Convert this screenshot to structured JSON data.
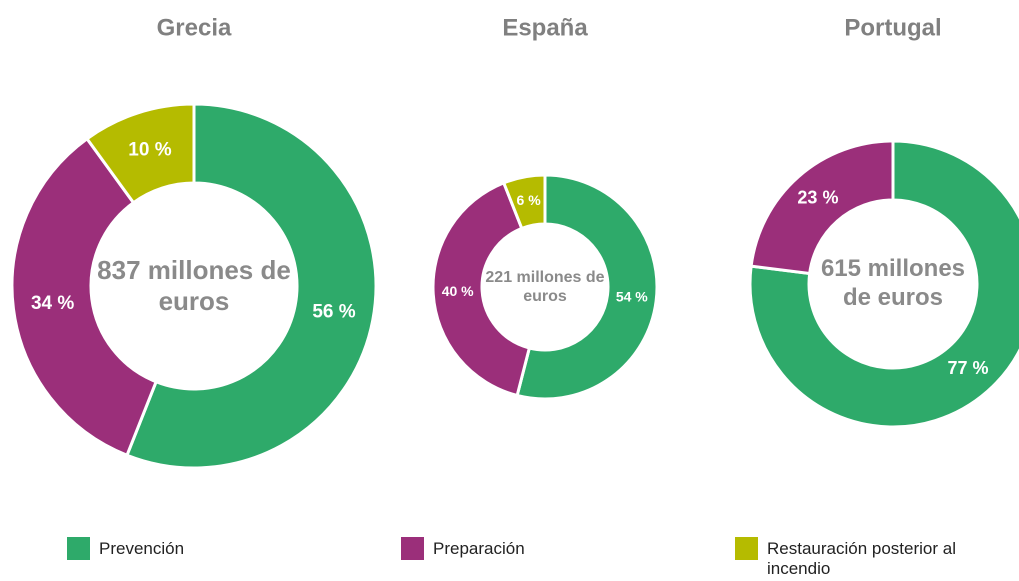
{
  "chart_data": [
    {
      "type": "pie",
      "title": "Grecia",
      "center_label": "837 millones de euros",
      "categories": [
        "Prevención",
        "Preparación",
        "Restauración posterior al incendio"
      ],
      "values": [
        56,
        34,
        10
      ],
      "value_labels": [
        "56 %",
        "34 %",
        "10 %"
      ],
      "colors": [
        "#2eaa6a",
        "#9b2f7a",
        "#b5bb00"
      ]
    },
    {
      "type": "pie",
      "title": "España",
      "center_label": "221 millones de euros",
      "categories": [
        "Prevención",
        "Preparación",
        "Restauración posterior al incendio"
      ],
      "values": [
        54,
        40,
        6
      ],
      "value_labels": [
        "54 %",
        "40 %",
        "6 %"
      ],
      "colors": [
        "#2eaa6a",
        "#9b2f7a",
        "#b5bb00"
      ]
    },
    {
      "type": "pie",
      "title": "Portugal",
      "center_label": "615 millones de euros",
      "categories": [
        "Prevención",
        "Preparación"
      ],
      "values": [
        77,
        23
      ],
      "value_labels": [
        "77 %",
        "23 %"
      ],
      "colors": [
        "#2eaa6a",
        "#9b2f7a"
      ]
    }
  ]
}
